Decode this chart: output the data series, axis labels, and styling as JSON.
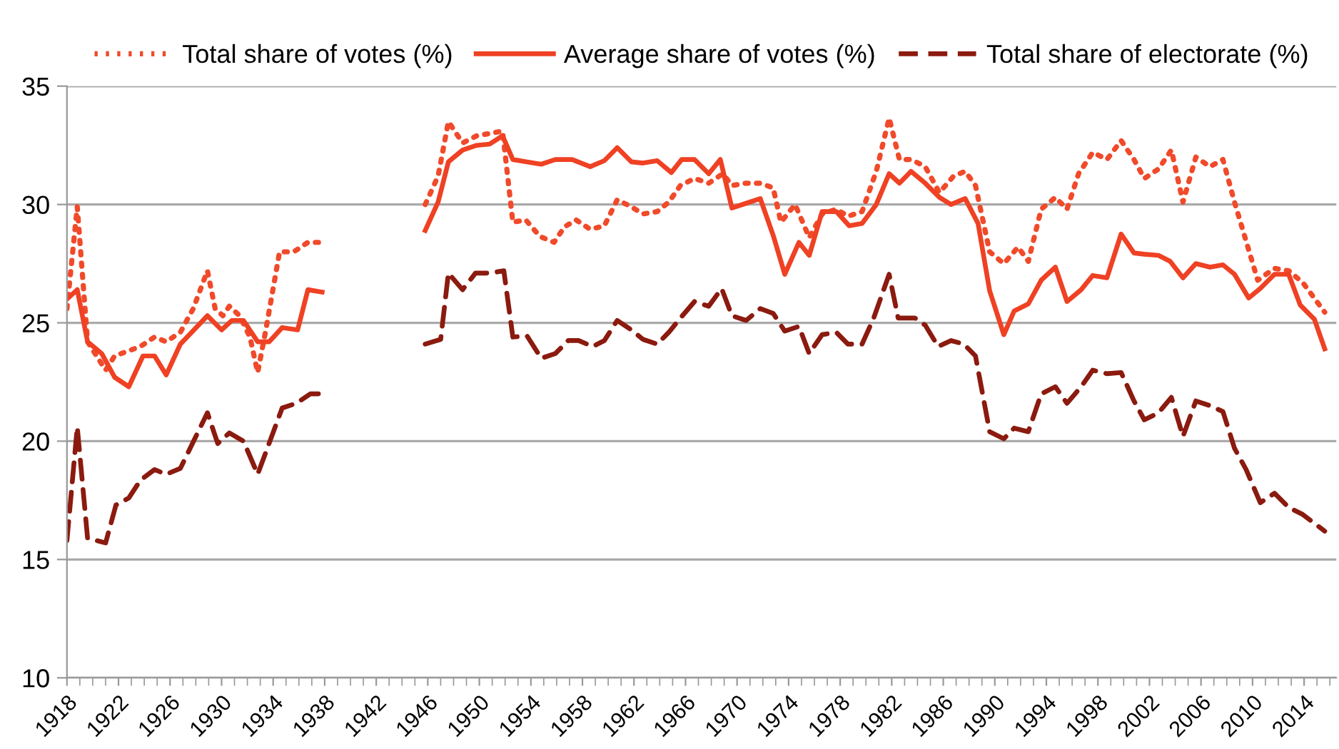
{
  "chart_data": {
    "type": "line",
    "xlim": [
      1918,
      2016.5
    ],
    "ylim": [
      10,
      35
    ],
    "yticks": [
      10,
      15,
      20,
      25,
      30,
      35
    ],
    "xticks": [
      1918,
      1922,
      1926,
      1930,
      1934,
      1938,
      1942,
      1946,
      1950,
      1954,
      1958,
      1962,
      1966,
      1970,
      1974,
      1978,
      1982,
      1986,
      1990,
      1994,
      1998,
      2002,
      2006,
      2010,
      2014
    ],
    "grid": "y",
    "legend": "top",
    "marker": "none",
    "series": [
      {
        "name": "Total share of votes (%)",
        "color": "#f04a2a",
        "line_style": "dotted",
        "x": [
          1918.0,
          1918.8,
          1919.6,
          1921.0,
          1921.7,
          1923.7,
          1924.8,
          1925.7,
          1926.8,
          1927.8,
          1928.9,
          1929.5,
          1930.1,
          1930.6,
          1931.4,
          1932.2,
          1932.8,
          1933.4,
          1934.5,
          1935.6,
          1936.7,
          1937.8,
          1942,
          1945.8,
          1946.8,
          1947.6,
          1948.7,
          1949.8,
          1950.8,
          1951.8,
          1952.6,
          1953.6,
          1954.7,
          1955.8,
          1956.6,
          1957.5,
          1958.6,
          1959.7,
          1960.7,
          1961.8,
          1962.7,
          1963.8,
          1964.7,
          1965.6,
          1966.7,
          1967.8,
          1968.9,
          1969.6,
          1970.7,
          1971.8,
          1972.8,
          1973.4,
          1974.5,
          1975.6,
          1976.6,
          1977.7,
          1978.6,
          1979.7,
          1980.8,
          1981.8,
          1982.6,
          1983.5,
          1984.6,
          1985.7,
          1986.8,
          1987.7,
          1988.5,
          1989.6,
          1990.7,
          1991.8,
          1992.6,
          1993.6,
          1994.7,
          1995.6,
          1996.5,
          1997.6,
          1998.7,
          1999.8,
          2000.8,
          2001.6,
          2002.7,
          2003.7,
          2004.6,
          2005.6,
          2006.7,
          2007.7,
          2008.6,
          2009.5,
          2010.4,
          2011.7,
          2012.8,
          2013.9,
          2015.6
        ],
        "values": [
          25.6,
          29.9,
          24.2,
          23.0,
          23.6,
          24.0,
          24.4,
          24.2,
          24.6,
          25.6,
          27.2,
          25.6,
          25.3,
          25.7,
          25.3,
          24.4,
          22.9,
          24.6,
          28.0,
          28.0,
          28.4,
          28.4,
          null,
          30.0,
          31.2,
          33.5,
          32.6,
          32.9,
          33.0,
          33.1,
          29.25,
          29.35,
          28.65,
          28.4,
          29.05,
          29.35,
          28.95,
          29.1,
          30.2,
          29.9,
          29.6,
          29.7,
          30.1,
          30.8,
          31.1,
          30.9,
          31.3,
          30.8,
          30.9,
          30.9,
          30.7,
          29.25,
          30.0,
          28.6,
          29.6,
          29.8,
          29.5,
          29.7,
          31.4,
          33.65,
          31.9,
          31.9,
          31.6,
          30.5,
          31.2,
          31.4,
          30.8,
          28.0,
          27.5,
          28.2,
          27.6,
          29.8,
          30.3,
          29.8,
          31.3,
          32.2,
          31.9,
          32.7,
          31.9,
          31.1,
          31.5,
          32.3,
          30.1,
          32.0,
          31.6,
          31.9,
          30.1,
          28.45,
          26.8,
          27.3,
          27.2,
          26.7,
          25.45
        ]
      },
      {
        "name": "Average share of votes (%)",
        "color": "#ef4123",
        "line_style": "solid",
        "x": [
          1918.0,
          1918.8,
          1919.6,
          1920.7,
          1921.7,
          1922.8,
          1923.9,
          1924.8,
          1925.7,
          1926.8,
          1928.9,
          1930.0,
          1930.8,
          1931.7,
          1932.8,
          1933.7,
          1934.7,
          1935.9,
          1936.7,
          1937.8,
          1942,
          1945.8,
          1946.8,
          1947.6,
          1948.7,
          1949.8,
          1950.8,
          1951.8,
          1952.6,
          1953.7,
          1954.8,
          1955.9,
          1957.2,
          1958.6,
          1959.7,
          1960.7,
          1961.8,
          1962.7,
          1963.8,
          1964.9,
          1965.7,
          1966.7,
          1967.8,
          1968.7,
          1969.6,
          1970.7,
          1971.8,
          1972.8,
          1973.7,
          1974.8,
          1975.6,
          1976.6,
          1977.7,
          1978.7,
          1979.7,
          1980.8,
          1981.8,
          1982.6,
          1983.5,
          1984.6,
          1985.7,
          1986.6,
          1987.7,
          1988.7,
          1989.6,
          1990.7,
          1991.5,
          1992.6,
          1993.6,
          1994.7,
          1995.6,
          1996.7,
          1997.6,
          1998.7,
          1999.8,
          2000.8,
          2001.6,
          2002.7,
          2003.6,
          2004.6,
          2005.6,
          2006.7,
          2007.7,
          2008.6,
          2009.7,
          2010.6,
          2011.7,
          2012.8,
          2013.7,
          2014.8,
          2015.6
        ],
        "values": [
          26.0,
          26.4,
          24.2,
          23.7,
          22.7,
          22.3,
          23.6,
          23.6,
          22.8,
          24.1,
          25.3,
          24.7,
          25.1,
          25.1,
          24.2,
          24.2,
          24.8,
          24.7,
          26.4,
          26.3,
          null,
          28.9,
          30.1,
          31.8,
          32.3,
          32.5,
          32.55,
          32.9,
          31.9,
          31.8,
          31.7,
          31.9,
          31.9,
          31.6,
          31.85,
          32.4,
          31.8,
          31.75,
          31.85,
          31.35,
          31.9,
          31.9,
          31.3,
          31.9,
          29.85,
          30.05,
          30.25,
          28.7,
          27.05,
          28.4,
          27.85,
          29.7,
          29.7,
          29.1,
          29.2,
          30.0,
          31.3,
          30.9,
          31.4,
          30.9,
          30.3,
          30.0,
          30.25,
          29.2,
          26.35,
          24.5,
          25.5,
          25.8,
          26.8,
          27.35,
          25.9,
          26.4,
          27.0,
          26.9,
          28.75,
          27.95,
          27.9,
          27.85,
          27.6,
          26.9,
          27.5,
          27.35,
          27.45,
          27.05,
          26.05,
          26.45,
          27.05,
          27.05,
          25.75,
          25.15,
          23.9
        ]
      },
      {
        "name": "Total share of electorate (%)",
        "color": "#8b1a0f",
        "line_style": "dashed",
        "x": [
          1918.0,
          1918.8,
          1919.6,
          1921.0,
          1921.8,
          1922.8,
          1923.7,
          1924.8,
          1925.7,
          1926.8,
          1928.9,
          1929.7,
          1930.6,
          1931.7,
          1932.8,
          1934.7,
          1935.8,
          1936.9,
          1937.8,
          1942,
          1945.8,
          1947.0,
          1947.6,
          1948.7,
          1949.7,
          1950.8,
          1951.9,
          1952.6,
          1953.7,
          1954.8,
          1955.9,
          1956.9,
          1957.7,
          1958.8,
          1959.7,
          1960.7,
          1961.8,
          1962.7,
          1963.8,
          1964.7,
          1965.6,
          1966.7,
          1967.8,
          1968.8,
          1969.6,
          1970.7,
          1971.8,
          1972.8,
          1973.7,
          1974.8,
          1975.6,
          1976.6,
          1977.7,
          1978.6,
          1979.7,
          1980.6,
          1981.8,
          1982.5,
          1983.8,
          1984.6,
          1985.6,
          1986.6,
          1987.6,
          1988.5,
          1989.6,
          1990.7,
          1991.5,
          1992.6,
          1993.6,
          1994.7,
          1995.6,
          1996.7,
          1997.6,
          1998.7,
          1999.8,
          2000.8,
          2001.6,
          2002.7,
          2003.7,
          2004.6,
          2005.6,
          2006.7,
          2007.7,
          2008.6,
          2009.5,
          2010.6,
          2011.7,
          2012.8,
          2013.9,
          2015.6
        ],
        "values": [
          15.8,
          20.6,
          15.9,
          15.7,
          17.3,
          17.6,
          18.35,
          18.8,
          18.6,
          18.85,
          21.2,
          19.9,
          20.35,
          20.0,
          18.6,
          21.4,
          21.6,
          22.0,
          22.0,
          null,
          24.1,
          24.3,
          27.1,
          26.4,
          27.1,
          27.1,
          27.2,
          24.4,
          24.45,
          23.5,
          23.7,
          24.25,
          24.25,
          24.0,
          24.25,
          25.1,
          24.7,
          24.3,
          24.1,
          24.6,
          25.2,
          25.9,
          25.7,
          26.45,
          25.3,
          25.1,
          25.6,
          25.4,
          24.65,
          24.85,
          23.7,
          24.5,
          24.6,
          24.1,
          24.1,
          25.2,
          27.05,
          25.2,
          25.2,
          24.9,
          24.0,
          24.25,
          24.1,
          23.6,
          20.4,
          20.1,
          20.55,
          20.4,
          22.0,
          22.3,
          21.6,
          22.3,
          23.0,
          22.85,
          22.9,
          21.7,
          20.9,
          21.2,
          21.85,
          20.2,
          21.7,
          21.5,
          21.25,
          19.7,
          18.8,
          17.4,
          17.8,
          17.2,
          16.9,
          16.2
        ]
      }
    ]
  }
}
